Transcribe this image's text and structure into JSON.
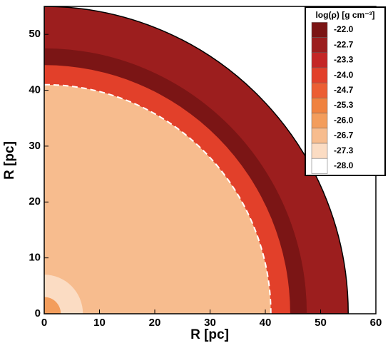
{
  "chart_data": {
    "type": "contour",
    "x_label": "R [pc]",
    "y_label": "R [pc]",
    "xlim": [
      0,
      60
    ],
    "ylim": [
      0,
      55
    ],
    "xticks": [
      0,
      10,
      20,
      30,
      40,
      50,
      60
    ],
    "yticks": [
      0,
      10,
      20,
      30,
      40,
      50
    ],
    "colorbar": {
      "title": "log(ρ) [g cm⁻³]",
      "levels": [
        {
          "value": -22,
          "label": "-22.0"
        },
        -22.7,
        -23.3,
        {
          "value": -24,
          "label": "-24.0"
        },
        -24.7,
        -25.3,
        {
          "value": -26,
          "label": "-26.0"
        },
        -26.7,
        -27.3,
        {
          "value": -28,
          "label": "-28.0"
        }
      ],
      "colors": [
        "#7b1515",
        "#9c1e1e",
        "#c42626",
        "#e2402a",
        "#ec5e33",
        "#f0823f",
        "#f39d5c",
        "#f7bc8e",
        "#fbdcc3",
        "#ffffff"
      ]
    },
    "regions": [
      {
        "r_outer": 55,
        "value": -22.7
      },
      {
        "r_outer": 47.5,
        "value": -22.0
      },
      {
        "r_outer": 44.5,
        "value": -24.0
      },
      {
        "r_outer": 41,
        "value": -26.7
      },
      {
        "r_outer": 7,
        "value": -27.3
      },
      {
        "r_outer": 3,
        "value": -26.0
      }
    ]
  }
}
